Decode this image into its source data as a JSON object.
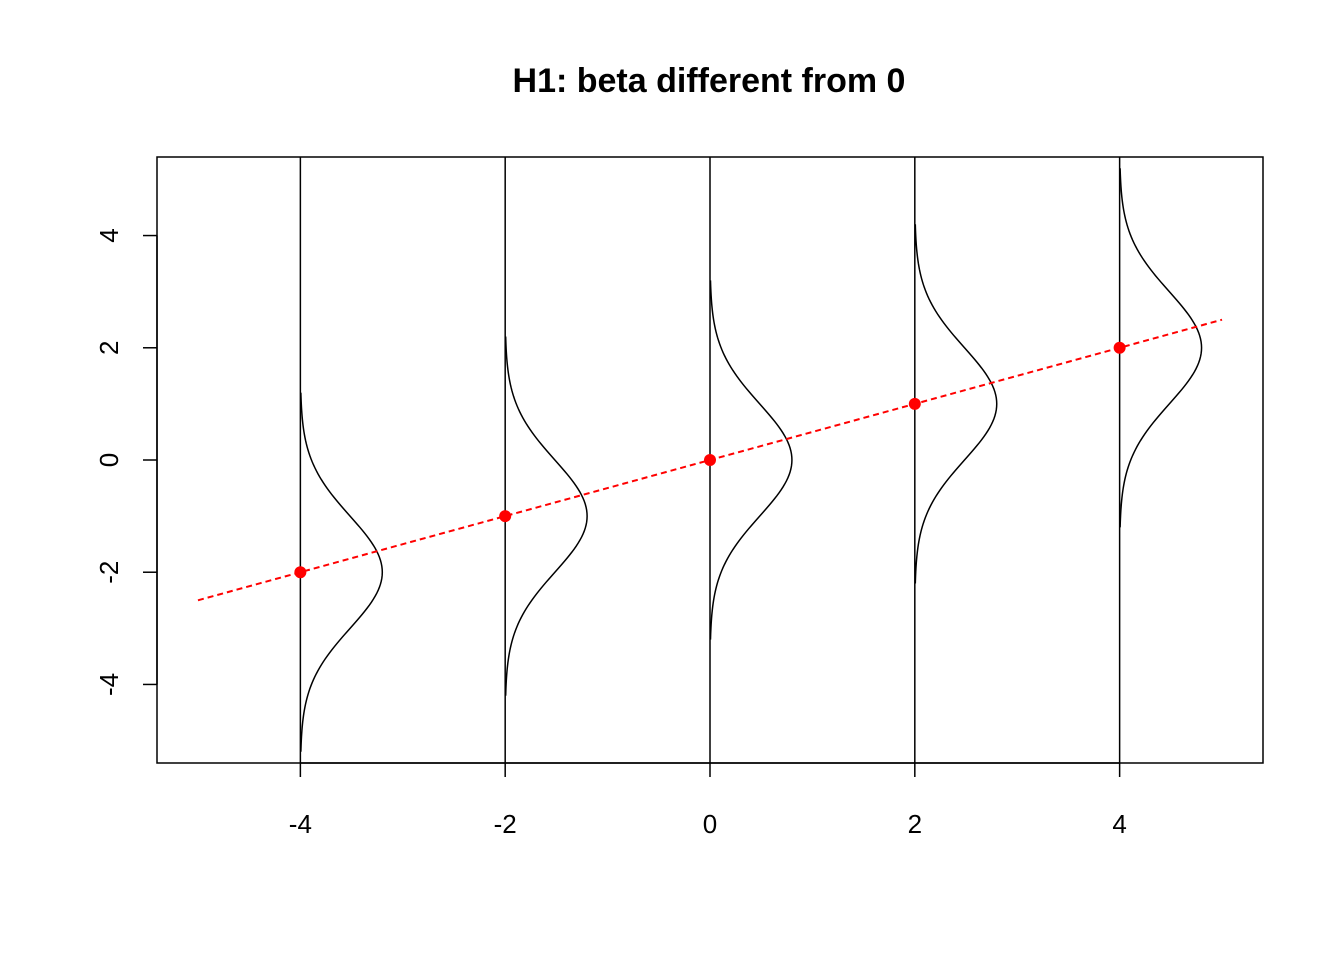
{
  "chart_data": {
    "type": "line",
    "title": "H1: beta different from 0",
    "xlabel": "",
    "ylabel": "",
    "xlim": [
      -5.4,
      5.4
    ],
    "ylim": [
      -5.4,
      5.4
    ],
    "x_ticks": [
      -4,
      -2,
      0,
      2,
      4
    ],
    "y_ticks": [
      -4,
      -2,
      0,
      2,
      4
    ],
    "x_tick_labels": [
      "-4",
      "-2",
      "0",
      "2",
      "4"
    ],
    "y_tick_labels": [
      "-4",
      "-2",
      "0",
      "2",
      "4"
    ],
    "grid": false,
    "regression_line": {
      "x": [
        -5,
        5
      ],
      "y": [
        -2.5,
        2.5
      ],
      "style": "dashed",
      "color": "#ff0000"
    },
    "points": {
      "x": [
        -4,
        -2,
        0,
        2,
        4
      ],
      "y": [
        -2,
        -1,
        0,
        1,
        2
      ],
      "color": "#ff0000"
    },
    "densities": {
      "x": [
        -4,
        -2,
        0,
        2,
        4
      ],
      "mean": [
        -2,
        -1,
        0,
        1,
        2
      ],
      "sd": 1,
      "range_sd": 3.2,
      "peak_width": 0.8,
      "color": "#000000"
    },
    "vertical_lines": {
      "x": [
        -4,
        -2,
        0,
        2,
        4
      ],
      "color": "#000000"
    }
  }
}
